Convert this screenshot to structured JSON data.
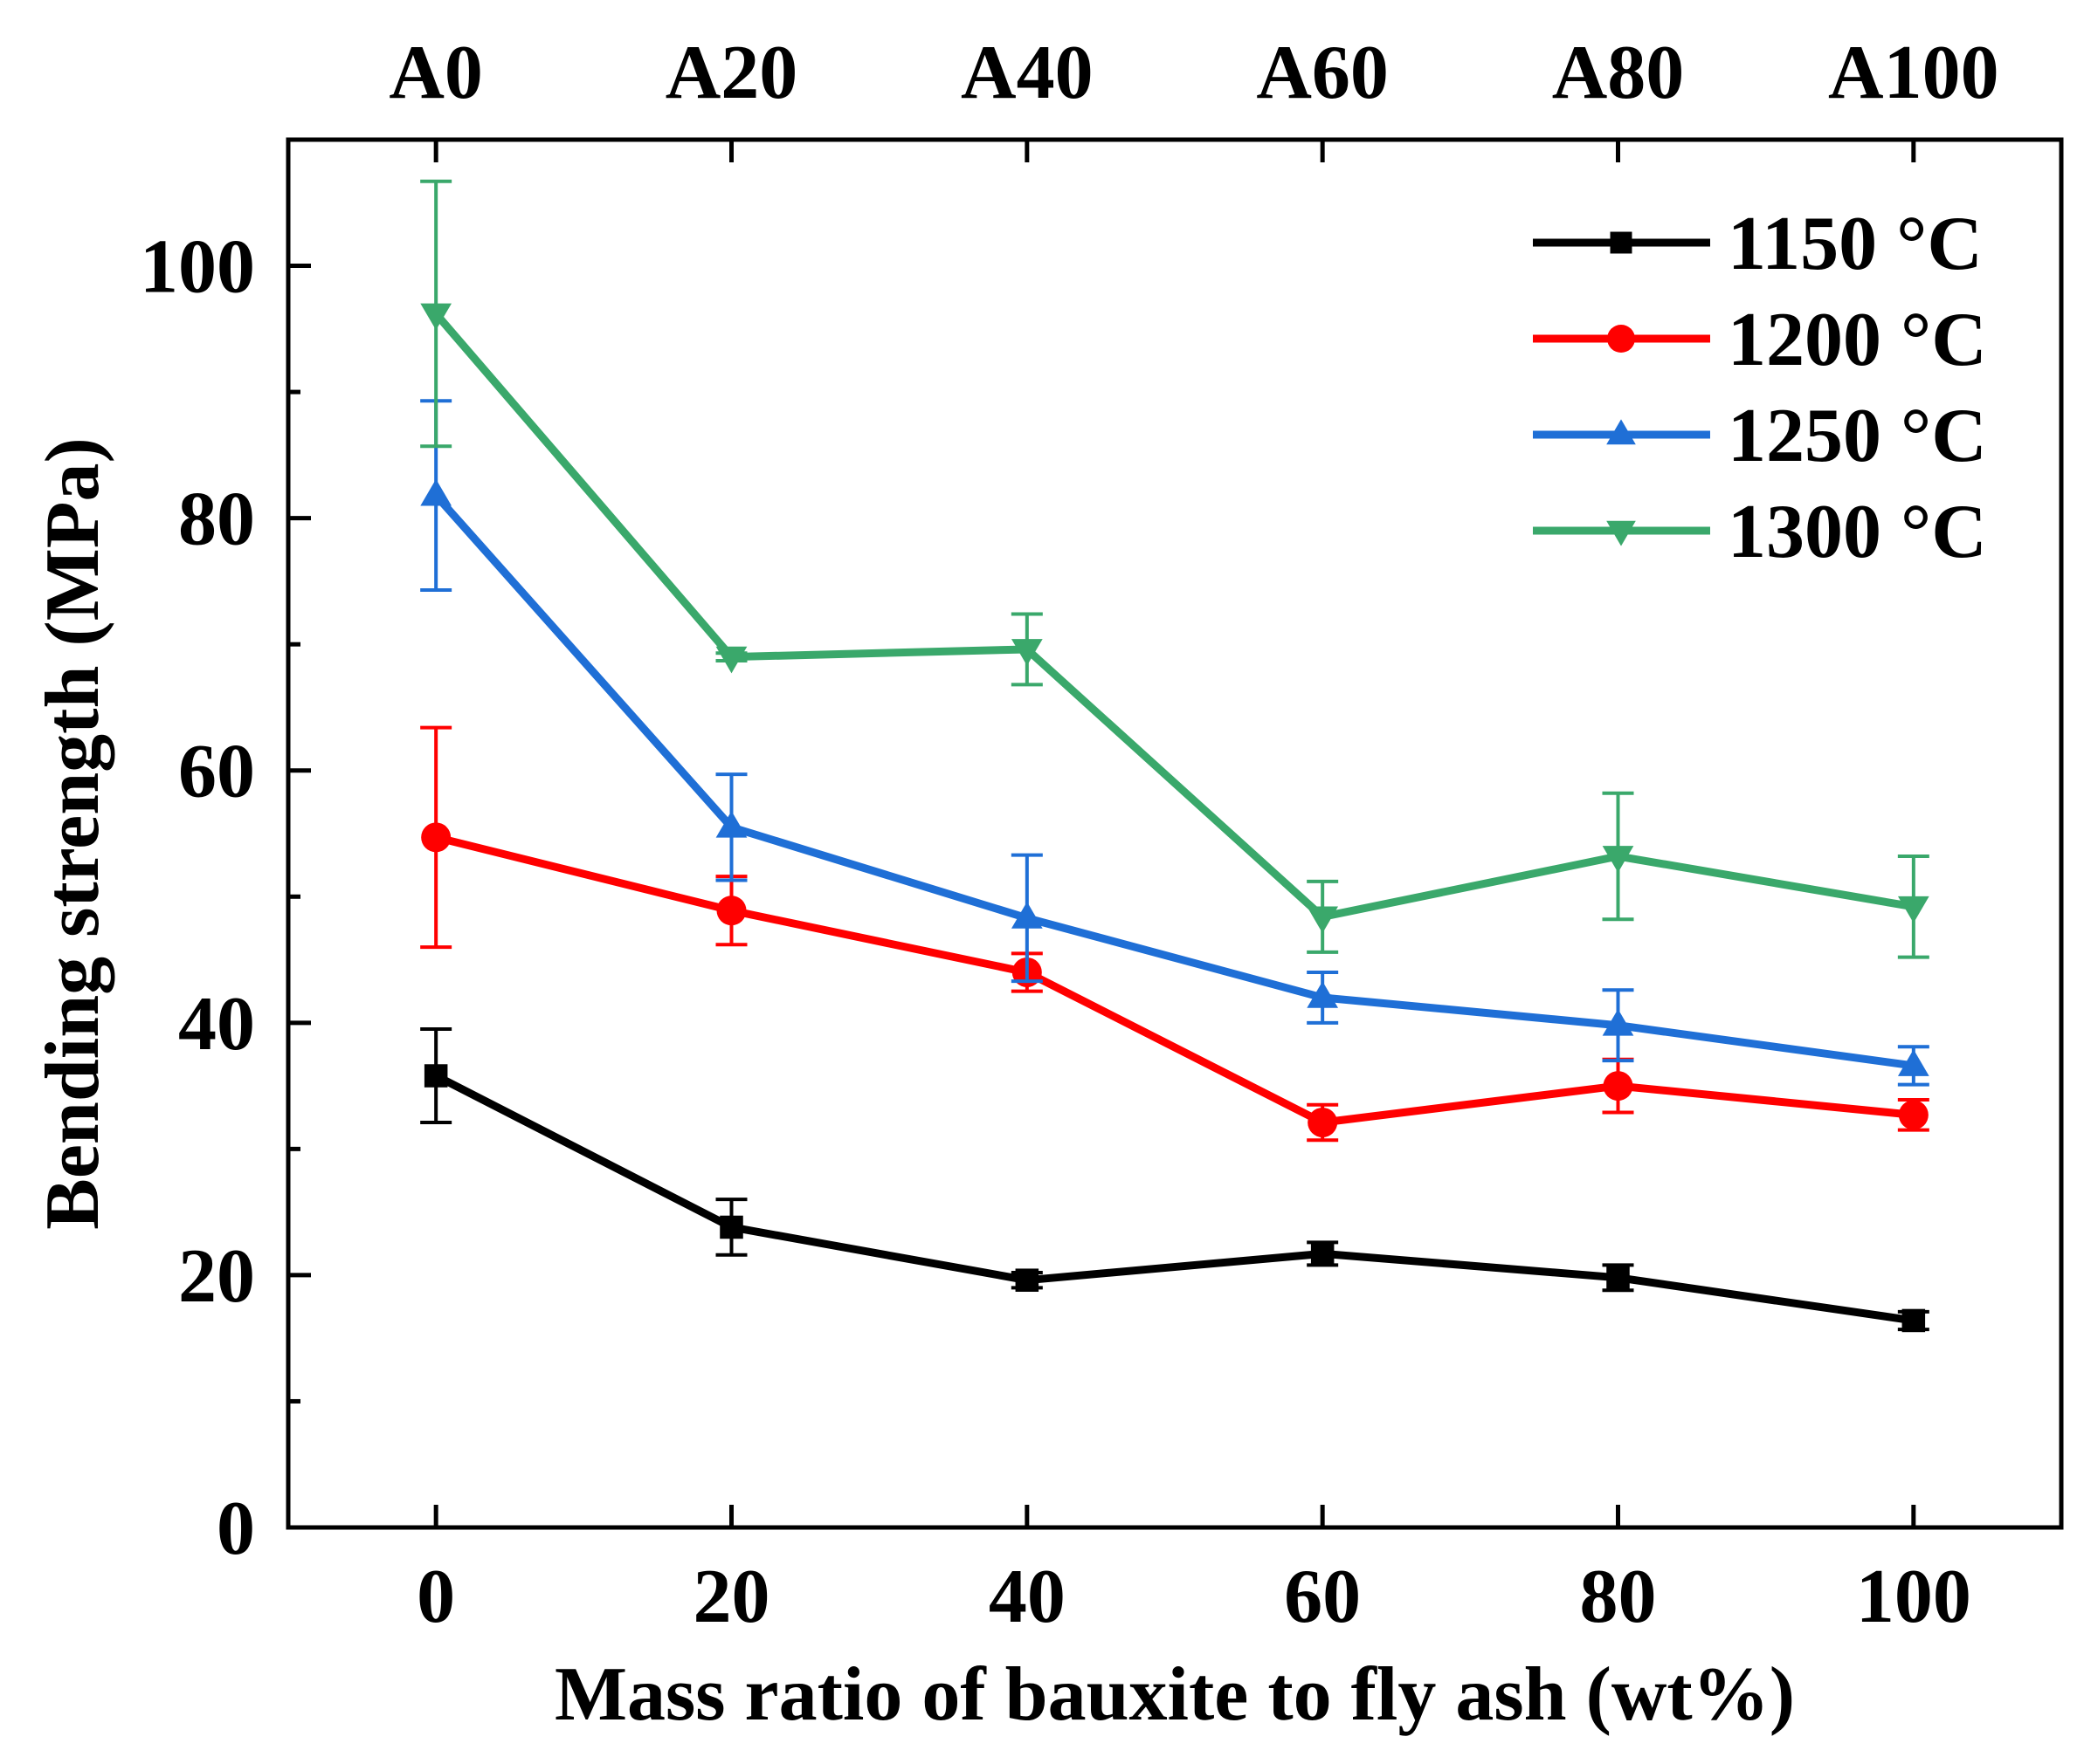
{
  "chart_data": {
    "type": "line",
    "title": "",
    "xlabel": "Mass ratio of bauxite to fly ash (wt%)",
    "ylabel": "Bending strength (MPa)",
    "x": [
      0,
      20,
      40,
      60,
      80,
      100
    ],
    "x_tick_labels": [
      "0",
      "20",
      "40",
      "60",
      "80",
      "100"
    ],
    "top_tick_labels": [
      "A0",
      "A20",
      "A40",
      "A60",
      "A80",
      "A100"
    ],
    "y_ticks": [
      0,
      20,
      40,
      60,
      80,
      100
    ],
    "y_tick_labels": [
      "0",
      "20",
      "40",
      "60",
      "80",
      "100"
    ],
    "xlim": [
      -10,
      110
    ],
    "ylim": [
      0,
      110
    ],
    "grid": false,
    "legend_position": "top-right",
    "series": [
      {
        "name": "1150 °C",
        "color": "#000000",
        "marker": "square",
        "values": [
          35.8,
          23.8,
          19.6,
          21.7,
          19.8,
          16.4
        ],
        "errors": [
          3.7,
          2.2,
          0.6,
          0.9,
          1.0,
          0.7
        ]
      },
      {
        "name": "1200 °C",
        "color": "#ff0000",
        "marker": "circle",
        "values": [
          54.7,
          48.9,
          44.0,
          32.1,
          35.0,
          32.7
        ],
        "errors": [
          8.7,
          2.7,
          1.5,
          1.4,
          2.1,
          1.2
        ]
      },
      {
        "name": "1250 °C",
        "color": "#1f6fd6",
        "marker": "triangle-up",
        "values": [
          81.8,
          55.5,
          48.3,
          42.0,
          39.8,
          36.6
        ],
        "errors": [
          7.5,
          4.2,
          5.0,
          2.0,
          2.8,
          1.5
        ]
      },
      {
        "name": "1300 °C",
        "color": "#3aa86b",
        "marker": "triangle-down",
        "values": [
          96.2,
          69.0,
          69.6,
          48.4,
          53.2,
          49.2
        ],
        "errors": [
          10.5,
          0.3,
          2.8,
          2.8,
          5.0,
          4.0
        ]
      }
    ]
  }
}
